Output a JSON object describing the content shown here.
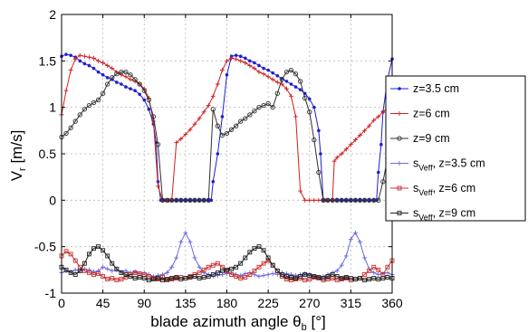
{
  "chart_data": {
    "type": "line",
    "xlabel": "blade azimuth angle θ",
    "xlabel_sub": "b",
    "xlabel_unit": " [°]",
    "ylabel": "V",
    "ylabel_sub": "r",
    "ylabel_unit": " [m/s]",
    "xlim": [
      0,
      360
    ],
    "ylim": [
      -1,
      2
    ],
    "xticks": [
      0,
      45,
      90,
      135,
      180,
      225,
      270,
      315,
      360
    ],
    "yticks": [
      -1,
      -0.5,
      0,
      0.5,
      1,
      1.5,
      2
    ],
    "ytick_labels": [
      "-1",
      "-0.5",
      "0",
      "0.5",
      "1",
      "1.5",
      "2"
    ],
    "grid": true,
    "legend_position": "right-outside",
    "series": [
      {
        "name": "z=3.5 cm",
        "color": "#1f1fd0",
        "marker": "dot",
        "x": [
          0,
          5,
          10,
          15,
          20,
          25,
          30,
          35,
          40,
          45,
          50,
          55,
          60,
          65,
          70,
          75,
          80,
          85,
          90,
          95,
          100,
          103,
          105,
          108,
          110,
          113,
          116,
          120,
          125,
          130,
          135,
          140,
          145,
          150,
          155,
          160,
          163,
          165,
          170,
          175,
          180,
          185,
          190,
          195,
          200,
          205,
          210,
          215,
          220,
          225,
          230,
          235,
          240,
          245,
          250,
          255,
          260,
          265,
          270,
          275,
          280,
          282,
          285,
          288,
          290,
          295,
          300,
          305,
          310,
          315,
          320,
          325,
          330,
          335,
          340,
          343,
          345,
          348,
          350,
          355,
          360
        ],
        "y": [
          1.55,
          1.57,
          1.56,
          1.54,
          1.5,
          1.47,
          1.45,
          1.42,
          1.38,
          1.35,
          1.32,
          1.3,
          1.27,
          1.25,
          1.22,
          1.2,
          1.18,
          1.14,
          1.08,
          0.98,
          0.82,
          0.62,
          0.2,
          0,
          0,
          0,
          0,
          0,
          0,
          0,
          0,
          0,
          0,
          0,
          0,
          0,
          0,
          0.2,
          0.5,
          0.9,
          1.35,
          1.55,
          1.56,
          1.55,
          1.53,
          1.5,
          1.48,
          1.45,
          1.42,
          1.4,
          1.37,
          1.34,
          1.31,
          1.28,
          1.25,
          1.22,
          1.19,
          1.15,
          1.09,
          1.0,
          0.75,
          0.5,
          0,
          0,
          0,
          0,
          0,
          0,
          0,
          0,
          0,
          0,
          0,
          0,
          0,
          0,
          0.3,
          0.6,
          0.95,
          1.3,
          1.52
        ]
      },
      {
        "name": "z=6 cm",
        "color": "#d02020",
        "marker": "plus",
        "x": [
          0,
          5,
          10,
          15,
          20,
          25,
          30,
          35,
          40,
          45,
          50,
          55,
          60,
          65,
          70,
          75,
          80,
          85,
          90,
          95,
          100,
          105,
          110,
          115,
          117,
          120,
          125,
          130,
          135,
          140,
          145,
          150,
          155,
          160,
          165,
          170,
          175,
          180,
          185,
          190,
          195,
          200,
          205,
          210,
          215,
          220,
          225,
          230,
          235,
          240,
          245,
          250,
          255,
          260,
          265,
          270,
          275,
          280,
          285,
          290,
          295,
          297,
          300,
          305,
          310,
          315,
          320,
          325,
          330,
          335,
          340,
          345,
          350,
          355,
          360
        ],
        "y": [
          0.92,
          1.18,
          1.4,
          1.52,
          1.56,
          1.55,
          1.54,
          1.53,
          1.5,
          1.48,
          1.45,
          1.42,
          1.38,
          1.35,
          1.33,
          1.3,
          1.28,
          1.25,
          1.2,
          1.1,
          0.85,
          0.15,
          0,
          0,
          0,
          0,
          0.62,
          0.66,
          0.71,
          0.76,
          0.82,
          0.88,
          0.95,
          1.02,
          1.12,
          1.25,
          1.4,
          1.5,
          1.53,
          1.52,
          1.5,
          1.48,
          1.45,
          1.42,
          1.38,
          1.36,
          1.33,
          1.3,
          1.27,
          1.25,
          1.2,
          1.12,
          0.9,
          0.1,
          0,
          0,
          0,
          0,
          0,
          0,
          0,
          0.42,
          0.46,
          0.5,
          0.55,
          0.6,
          0.65,
          0.7,
          0.75,
          0.8,
          0.86,
          0.9,
          0.95,
          1.0,
          1.02
        ]
      },
      {
        "name": "z=9 cm",
        "color": "#303030",
        "marker": "circle",
        "x": [
          0,
          5,
          10,
          15,
          20,
          25,
          30,
          35,
          40,
          45,
          50,
          55,
          60,
          65,
          70,
          75,
          80,
          85,
          90,
          95,
          100,
          105,
          110,
          115,
          120,
          125,
          130,
          135,
          140,
          145,
          150,
          155,
          160,
          165,
          170,
          175,
          180,
          185,
          190,
          195,
          200,
          205,
          210,
          215,
          220,
          225,
          230,
          235,
          240,
          245,
          250,
          255,
          260,
          265,
          270,
          275,
          280,
          285,
          290,
          295,
          300,
          305,
          310,
          315,
          320,
          325,
          330,
          335,
          340,
          345,
          350,
          355,
          360
        ],
        "y": [
          0.68,
          0.72,
          0.78,
          0.85,
          0.92,
          0.98,
          1.02,
          1.05,
          1.08,
          1.15,
          1.25,
          1.32,
          1.36,
          1.38,
          1.38,
          1.35,
          1.3,
          1.25,
          1.18,
          1.08,
          0.9,
          0.6,
          0,
          0,
          0,
          0,
          0,
          0,
          0,
          0,
          0,
          0,
          0,
          0.98,
          0.8,
          0.7,
          0.72,
          0.76,
          0.8,
          0.85,
          0.88,
          0.92,
          0.96,
          1.0,
          1.02,
          1.04,
          1.0,
          1.15,
          1.3,
          1.38,
          1.4,
          1.36,
          1.28,
          1.1,
          0.95,
          0.65,
          0.3,
          0,
          0,
          0,
          0,
          0,
          0,
          0,
          0,
          0,
          0,
          0,
          0,
          0,
          0.2,
          0.45,
          0.6
        ]
      },
      {
        "name": "s",
        "name_sub": "Veff",
        "name_suffix": ", z=3.5 cm",
        "color": "#6a6ae0",
        "marker": "plus",
        "x": [
          0,
          5,
          10,
          15,
          20,
          25,
          30,
          35,
          40,
          45,
          50,
          55,
          60,
          65,
          70,
          75,
          80,
          85,
          90,
          95,
          100,
          105,
          110,
          115,
          120,
          125,
          130,
          135,
          140,
          145,
          150,
          155,
          160,
          165,
          170,
          175,
          180,
          185,
          190,
          195,
          200,
          205,
          210,
          215,
          220,
          225,
          230,
          235,
          240,
          245,
          250,
          255,
          260,
          265,
          270,
          275,
          280,
          285,
          290,
          295,
          300,
          305,
          310,
          315,
          320,
          325,
          330,
          335,
          340,
          345,
          350,
          355,
          360
        ],
        "y": [
          -0.78,
          -0.76,
          -0.77,
          -0.75,
          -0.76,
          -0.74,
          -0.75,
          -0.77,
          -0.76,
          -0.72,
          -0.74,
          -0.76,
          -0.75,
          -0.77,
          -0.76,
          -0.78,
          -0.77,
          -0.79,
          -0.78,
          -0.8,
          -0.82,
          -0.81,
          -0.8,
          -0.78,
          -0.72,
          -0.62,
          -0.45,
          -0.35,
          -0.45,
          -0.62,
          -0.72,
          -0.78,
          -0.8,
          -0.82,
          -0.81,
          -0.8,
          -0.79,
          -0.78,
          -0.8,
          -0.81,
          -0.79,
          -0.78,
          -0.8,
          -0.82,
          -0.81,
          -0.8,
          -0.79,
          -0.8,
          -0.78,
          -0.79,
          -0.8,
          -0.81,
          -0.8,
          -0.79,
          -0.8,
          -0.82,
          -0.83,
          -0.82,
          -0.8,
          -0.78,
          -0.76,
          -0.7,
          -0.6,
          -0.42,
          -0.35,
          -0.45,
          -0.62,
          -0.74,
          -0.78,
          -0.8,
          -0.79,
          -0.78,
          -0.8
        ]
      },
      {
        "name": "s",
        "name_sub": "Veff",
        "name_suffix": ", z=6 cm",
        "color": "#c83030",
        "marker": "square",
        "x": [
          0,
          5,
          10,
          15,
          20,
          25,
          30,
          35,
          40,
          45,
          50,
          55,
          60,
          65,
          70,
          75,
          80,
          85,
          90,
          95,
          100,
          105,
          110,
          115,
          120,
          125,
          130,
          135,
          140,
          145,
          150,
          155,
          160,
          165,
          170,
          175,
          180,
          185,
          190,
          195,
          200,
          205,
          210,
          215,
          220,
          225,
          230,
          235,
          240,
          245,
          250,
          255,
          260,
          265,
          270,
          275,
          280,
          285,
          290,
          295,
          300,
          305,
          310,
          315,
          320,
          325,
          330,
          335,
          340,
          345,
          350,
          355,
          360
        ],
        "y": [
          -0.6,
          -0.55,
          -0.58,
          -0.65,
          -0.72,
          -0.76,
          -0.78,
          -0.8,
          -0.79,
          -0.82,
          -0.85,
          -0.84,
          -0.86,
          -0.85,
          -0.83,
          -0.8,
          -0.78,
          -0.79,
          -0.8,
          -0.82,
          -0.84,
          -0.85,
          -0.83,
          -0.86,
          -0.85,
          -0.84,
          -0.83,
          -0.84,
          -0.82,
          -0.8,
          -0.78,
          -0.75,
          -0.72,
          -0.7,
          -0.68,
          -0.72,
          -0.76,
          -0.8,
          -0.82,
          -0.84,
          -0.83,
          -0.8,
          -0.76,
          -0.72,
          -0.68,
          -0.65,
          -0.7,
          -0.76,
          -0.82,
          -0.85,
          -0.86,
          -0.85,
          -0.84,
          -0.86,
          -0.85,
          -0.83,
          -0.84,
          -0.86,
          -0.85,
          -0.84,
          -0.86,
          -0.85,
          -0.84,
          -0.86,
          -0.85,
          -0.84,
          -0.8,
          -0.76,
          -0.72,
          -0.75,
          -0.8,
          -0.72,
          -0.65
        ]
      },
      {
        "name": "s",
        "name_sub": "Veff",
        "name_suffix": ", z=9 cm",
        "color": "#202020",
        "marker": "square",
        "x": [
          0,
          5,
          10,
          15,
          20,
          25,
          30,
          35,
          40,
          45,
          50,
          55,
          60,
          65,
          70,
          75,
          80,
          85,
          90,
          95,
          100,
          105,
          110,
          115,
          120,
          125,
          130,
          135,
          140,
          145,
          150,
          155,
          160,
          165,
          170,
          175,
          180,
          185,
          190,
          195,
          200,
          205,
          210,
          215,
          220,
          225,
          230,
          235,
          240,
          245,
          250,
          255,
          260,
          265,
          270,
          275,
          280,
          285,
          290,
          295,
          300,
          305,
          310,
          315,
          320,
          325,
          330,
          335,
          340,
          345,
          350,
          355,
          360
        ],
        "y": [
          -0.72,
          -0.75,
          -0.78,
          -0.8,
          -0.76,
          -0.68,
          -0.58,
          -0.52,
          -0.5,
          -0.54,
          -0.6,
          -0.68,
          -0.74,
          -0.78,
          -0.8,
          -0.82,
          -0.84,
          -0.83,
          -0.84,
          -0.86,
          -0.85,
          -0.84,
          -0.86,
          -0.85,
          -0.84,
          -0.83,
          -0.85,
          -0.84,
          -0.83,
          -0.82,
          -0.84,
          -0.83,
          -0.82,
          -0.8,
          -0.78,
          -0.76,
          -0.75,
          -0.74,
          -0.72,
          -0.68,
          -0.62,
          -0.56,
          -0.52,
          -0.5,
          -0.54,
          -0.62,
          -0.7,
          -0.76,
          -0.8,
          -0.82,
          -0.83,
          -0.84,
          -0.82,
          -0.8,
          -0.81,
          -0.82,
          -0.83,
          -0.84,
          -0.82,
          -0.8,
          -0.82,
          -0.84,
          -0.83,
          -0.84,
          -0.85,
          -0.84,
          -0.86,
          -0.85,
          -0.84,
          -0.85,
          -0.84,
          -0.83,
          -0.84
        ]
      }
    ]
  }
}
